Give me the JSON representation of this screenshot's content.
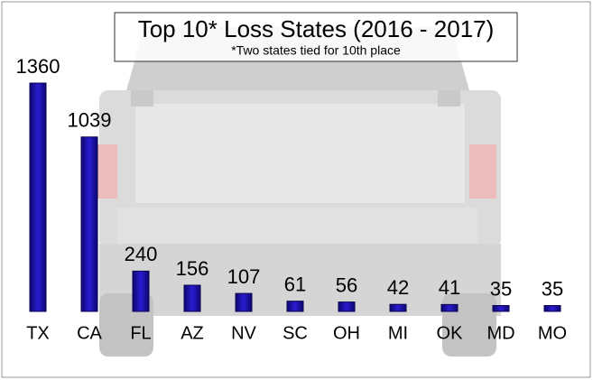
{
  "chart_data": {
    "type": "bar",
    "title": "Top 10* Loss States (2016 - 2017)",
    "subtitle": "*Two states tied for 10th place",
    "categories": [
      "TX",
      "CA",
      "FL",
      "AZ",
      "NV",
      "SC",
      "OH",
      "MI",
      "OK",
      "MD",
      "MO"
    ],
    "values": [
      1360,
      1039,
      240,
      156,
      107,
      61,
      56,
      42,
      41,
      35,
      35
    ],
    "color": "#1c0fa8"
  }
}
